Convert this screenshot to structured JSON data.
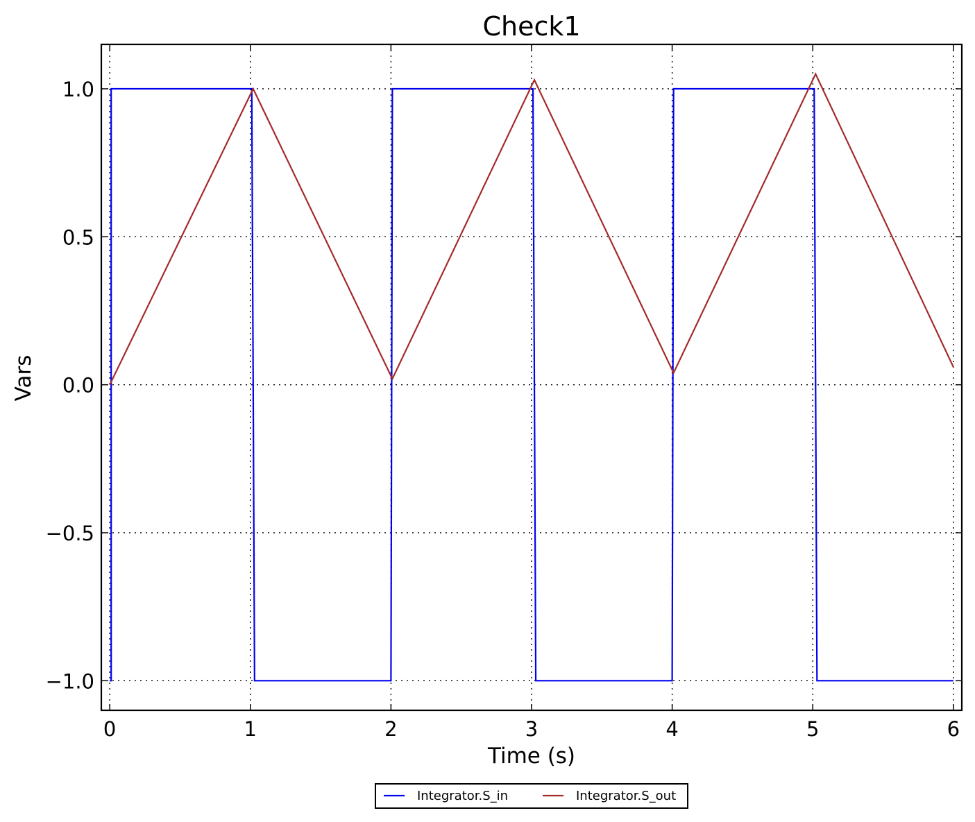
{
  "chart_data": {
    "type": "line",
    "title": "Check1",
    "xlabel": "Time (s)",
    "ylabel": "Vars",
    "xlim": [
      -0.06,
      6.06
    ],
    "ylim": [
      -1.1,
      1.15
    ],
    "xticks": [
      0,
      1,
      2,
      3,
      4,
      5,
      6
    ],
    "xtick_labels": [
      "0",
      "1",
      "2",
      "3",
      "4",
      "5",
      "6"
    ],
    "yticks": [
      1.0,
      0.5,
      0.0,
      -0.5,
      -1.0
    ],
    "ytick_labels": [
      "1.0",
      "0.5",
      "0.0",
      "−0.5",
      "−1.0"
    ],
    "grid": true,
    "legend_position": "bottom-center",
    "series": [
      {
        "name": "Integrator.S_in",
        "color": "#0000ee",
        "x": [
          0.0,
          0.01,
          0.01,
          1.01,
          1.03,
          2.0,
          2.01,
          3.01,
          3.03,
          4.0,
          4.01,
          5.01,
          5.03,
          6.0
        ],
        "y": [
          -1.0,
          -1.0,
          1.0,
          1.0,
          -1.0,
          -1.0,
          1.0,
          1.0,
          -1.0,
          -1.0,
          1.0,
          1.0,
          -1.0,
          -1.0
        ]
      },
      {
        "name": "Integrator.S_out",
        "color": "#a52a2a",
        "x": [
          0.0,
          1.02,
          2.01,
          3.02,
          4.01,
          5.02,
          6.0
        ],
        "y": [
          0.0,
          1.0,
          0.02,
          1.03,
          0.04,
          1.05,
          0.06
        ]
      }
    ]
  }
}
